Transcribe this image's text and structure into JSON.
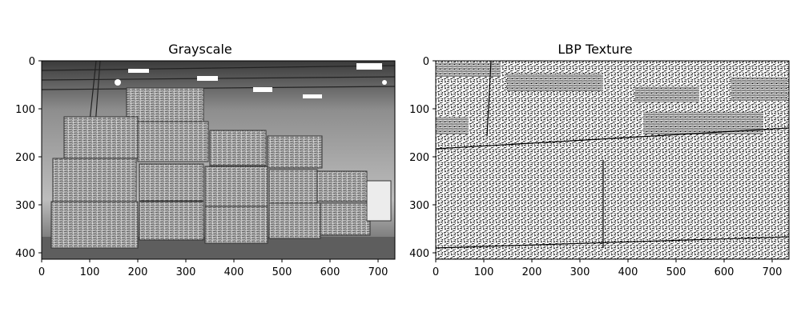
{
  "figure": {
    "panels": [
      {
        "title": "Grayscale",
        "x_ticks": [
          "0",
          "100",
          "200",
          "300",
          "400",
          "500",
          "600",
          "700"
        ],
        "y_ticks": [
          "0",
          "100",
          "200",
          "300",
          "400"
        ],
        "image_description": "grayscale warehouse interior with stacked compressed bales"
      },
      {
        "title": "LBP Texture",
        "x_ticks": [
          "0",
          "100",
          "200",
          "300",
          "400",
          "500",
          "600",
          "700"
        ],
        "y_ticks": [
          "0",
          "100",
          "200",
          "300",
          "400"
        ],
        "image_description": "local binary pattern texture map of the same scene"
      }
    ]
  }
}
